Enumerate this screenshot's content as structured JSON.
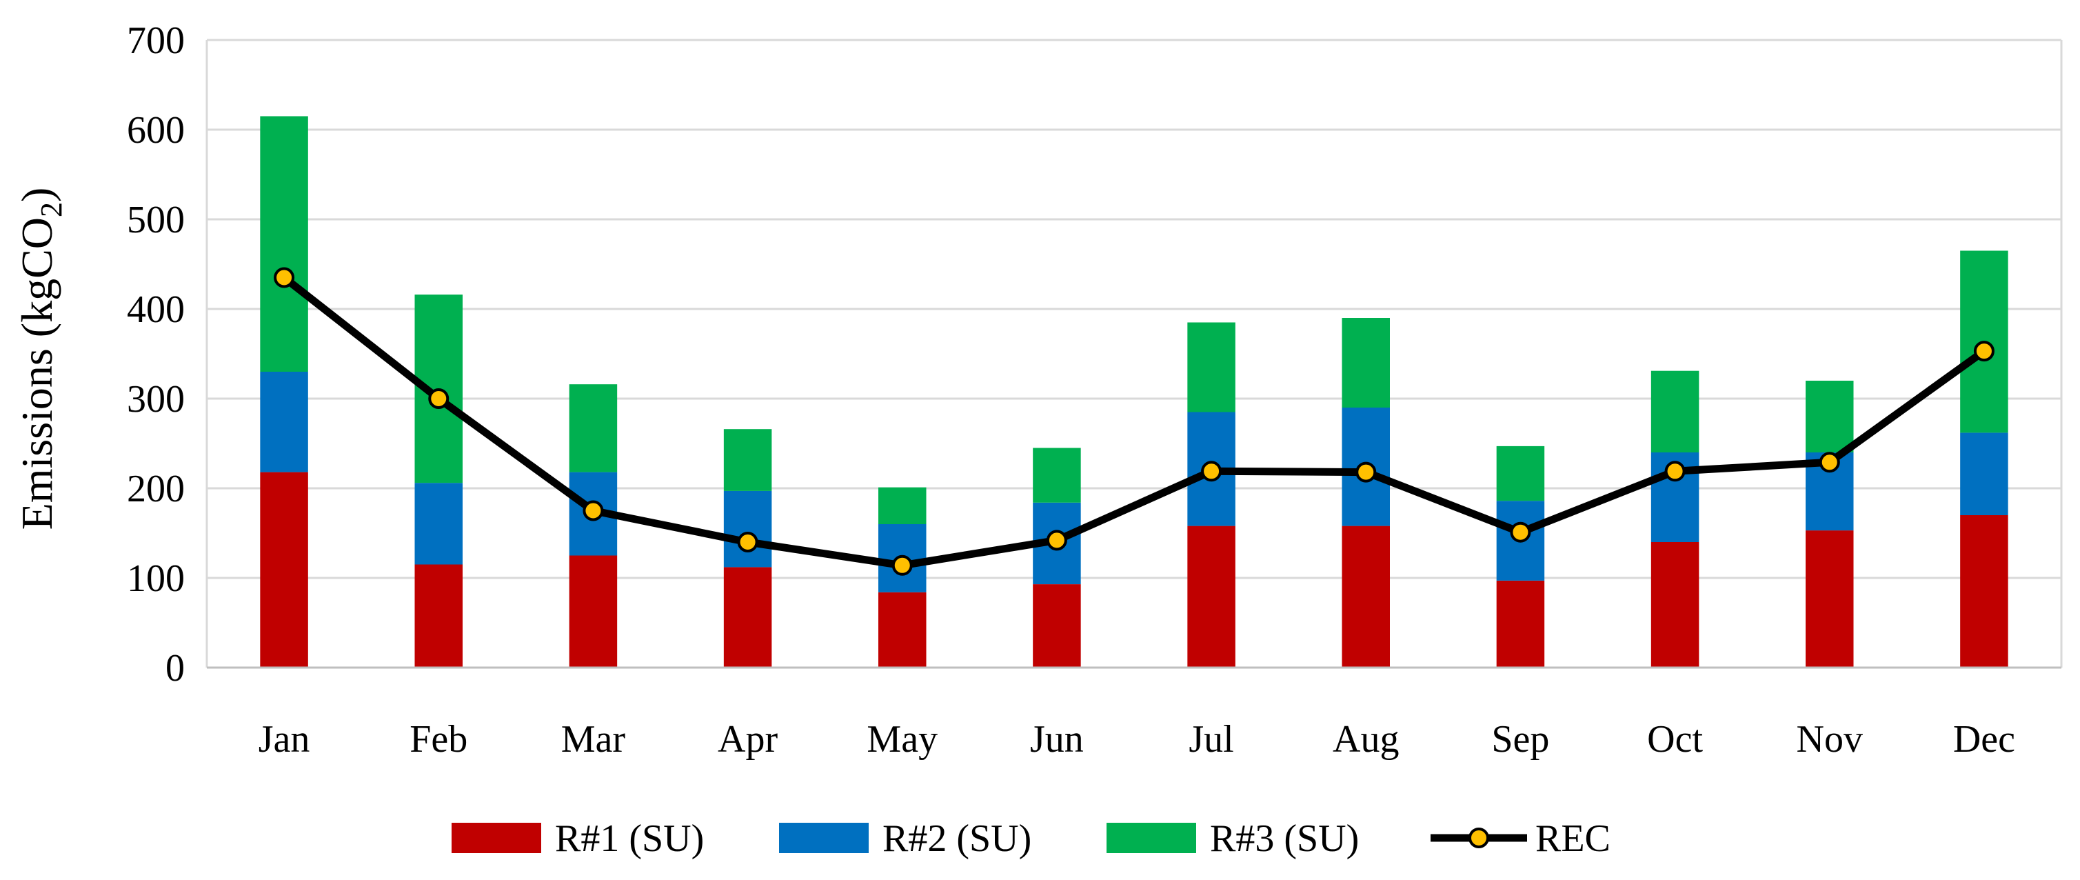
{
  "chart_data": {
    "type": "bar",
    "stacked": true,
    "title": "",
    "xlabel": "",
    "ylabel_main": "Emissions (kgCO",
    "ylabel_sub": "2",
    "ylabel_end": ")",
    "ylim": [
      0,
      700
    ],
    "yticks": [
      0,
      100,
      200,
      300,
      400,
      500,
      600,
      700
    ],
    "grid": true,
    "categories": [
      "Jan",
      "Feb",
      "Mar",
      "Apr",
      "May",
      "Jun",
      "Jul",
      "Aug",
      "Sep",
      "Oct",
      "Nov",
      "Dec"
    ],
    "series": [
      {
        "name": "R#1 (SU)",
        "kind": "bar",
        "color": "#c00000",
        "values": [
          218,
          115,
          125,
          112,
          84,
          93,
          158,
          158,
          97,
          140,
          153,
          170
        ]
      },
      {
        "name": "R#2 (SU)",
        "kind": "bar",
        "color": "#0070c0",
        "values": [
          112,
          91,
          93,
          85,
          76,
          91,
          127,
          132,
          89,
          100,
          87,
          92
        ]
      },
      {
        "name": "R#3 (SU)",
        "kind": "bar",
        "color": "#00b050",
        "values": [
          285,
          210,
          98,
          69,
          41,
          61,
          100,
          100,
          61,
          91,
          80,
          203
        ]
      },
      {
        "name": "REC",
        "kind": "line",
        "color": "#000000",
        "marker_color": "#ffc000",
        "values": [
          435,
          300,
          175,
          140,
          114,
          142,
          219,
          218,
          151,
          219,
          229,
          353
        ]
      }
    ],
    "legend_position": "bottom"
  }
}
